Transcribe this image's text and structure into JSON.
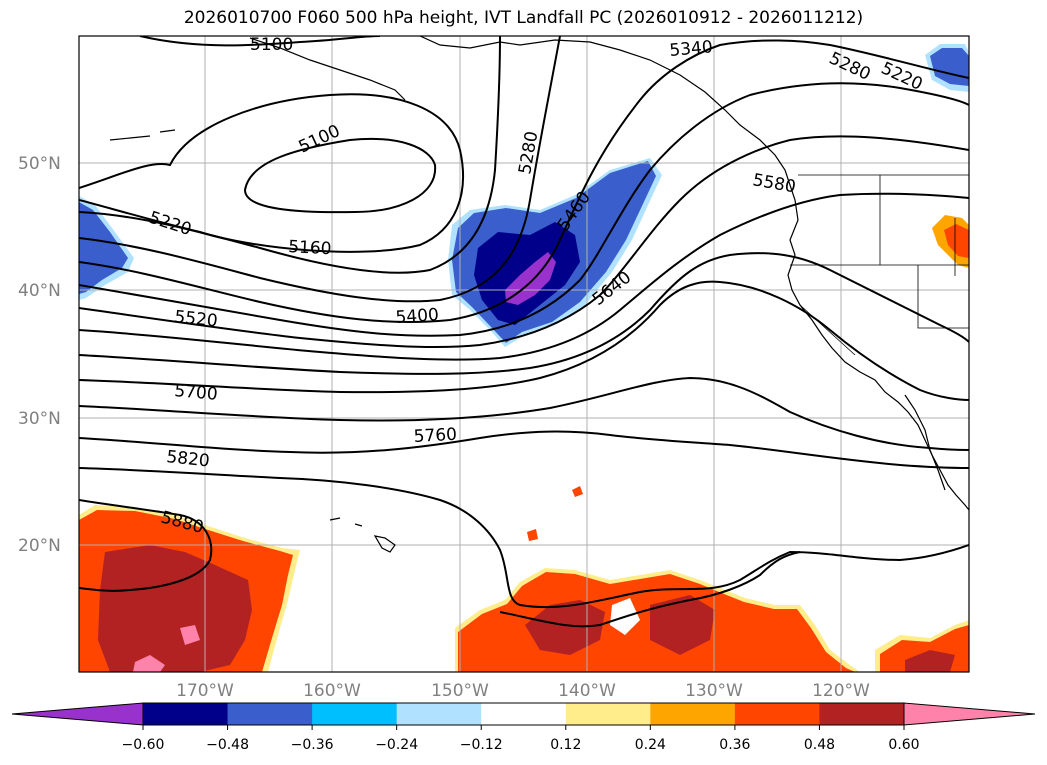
{
  "title": "2026010700 F060 500 hPa height, IVT Landfall PC (2026010912 - 2026011212)",
  "lat_labels": [
    "50°N",
    "40°N",
    "30°N",
    "20°N"
  ],
  "lon_labels": [
    "170°W",
    "160°W",
    "150°W",
    "140°W",
    "130°W",
    "120°W"
  ],
  "contour_labels": [
    "5100",
    "5100",
    "5160",
    "5220",
    "5220",
    "5280",
    "5280",
    "5340",
    "5400",
    "5460",
    "5520",
    "5580",
    "5640",
    "5700",
    "5760",
    "5820",
    "5880"
  ],
  "colorbar": {
    "colors": [
      "#9932cc",
      "#00008b",
      "#3a5fcd",
      "#00bfff",
      "#b0e2ff",
      "#ffffff",
      "#ffec8b",
      "#ffa500",
      "#ff4500",
      "#b22222",
      "#ff82ab"
    ],
    "tick_labels": [
      "−0.60",
      "−0.48",
      "−0.36",
      "−0.24",
      "−0.12",
      "0.12",
      "0.24",
      "0.36",
      "0.48",
      "0.60"
    ]
  },
  "map": {
    "contour_color": "#000000",
    "grid_color": "#b0b0b0"
  }
}
